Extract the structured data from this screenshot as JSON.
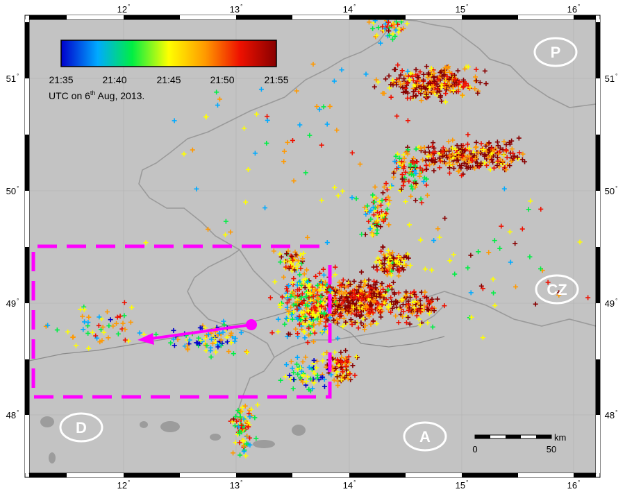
{
  "map": {
    "lon_ticks": [
      "12",
      "13",
      "14",
      "15",
      "16"
    ],
    "lat_ticks": [
      "51",
      "50",
      "49",
      "48"
    ],
    "degree_symbol": "°"
  },
  "colorbar": {
    "tick_labels": [
      "21:35",
      "21:40",
      "21:45",
      "21:50",
      "21:55"
    ],
    "caption_prefix": "UTC on 6",
    "caption_sup": "th",
    "caption_suffix": " Aug, 2013.",
    "colors": [
      "#0000cc",
      "#00aaff",
      "#00ee44",
      "#ffff00",
      "#ff9900",
      "#ee1100",
      "#880000"
    ]
  },
  "labels": {
    "top_right": "P",
    "right_mid": "CZ",
    "bottom_left": "D",
    "bottom_center": "A"
  },
  "scale_bar": {
    "unit": "km",
    "start": "0",
    "end": "50"
  },
  "style": {
    "land": "#c3c3c3",
    "box_color": "#ff00ff",
    "border_color": "#9a9a9a"
  }
}
